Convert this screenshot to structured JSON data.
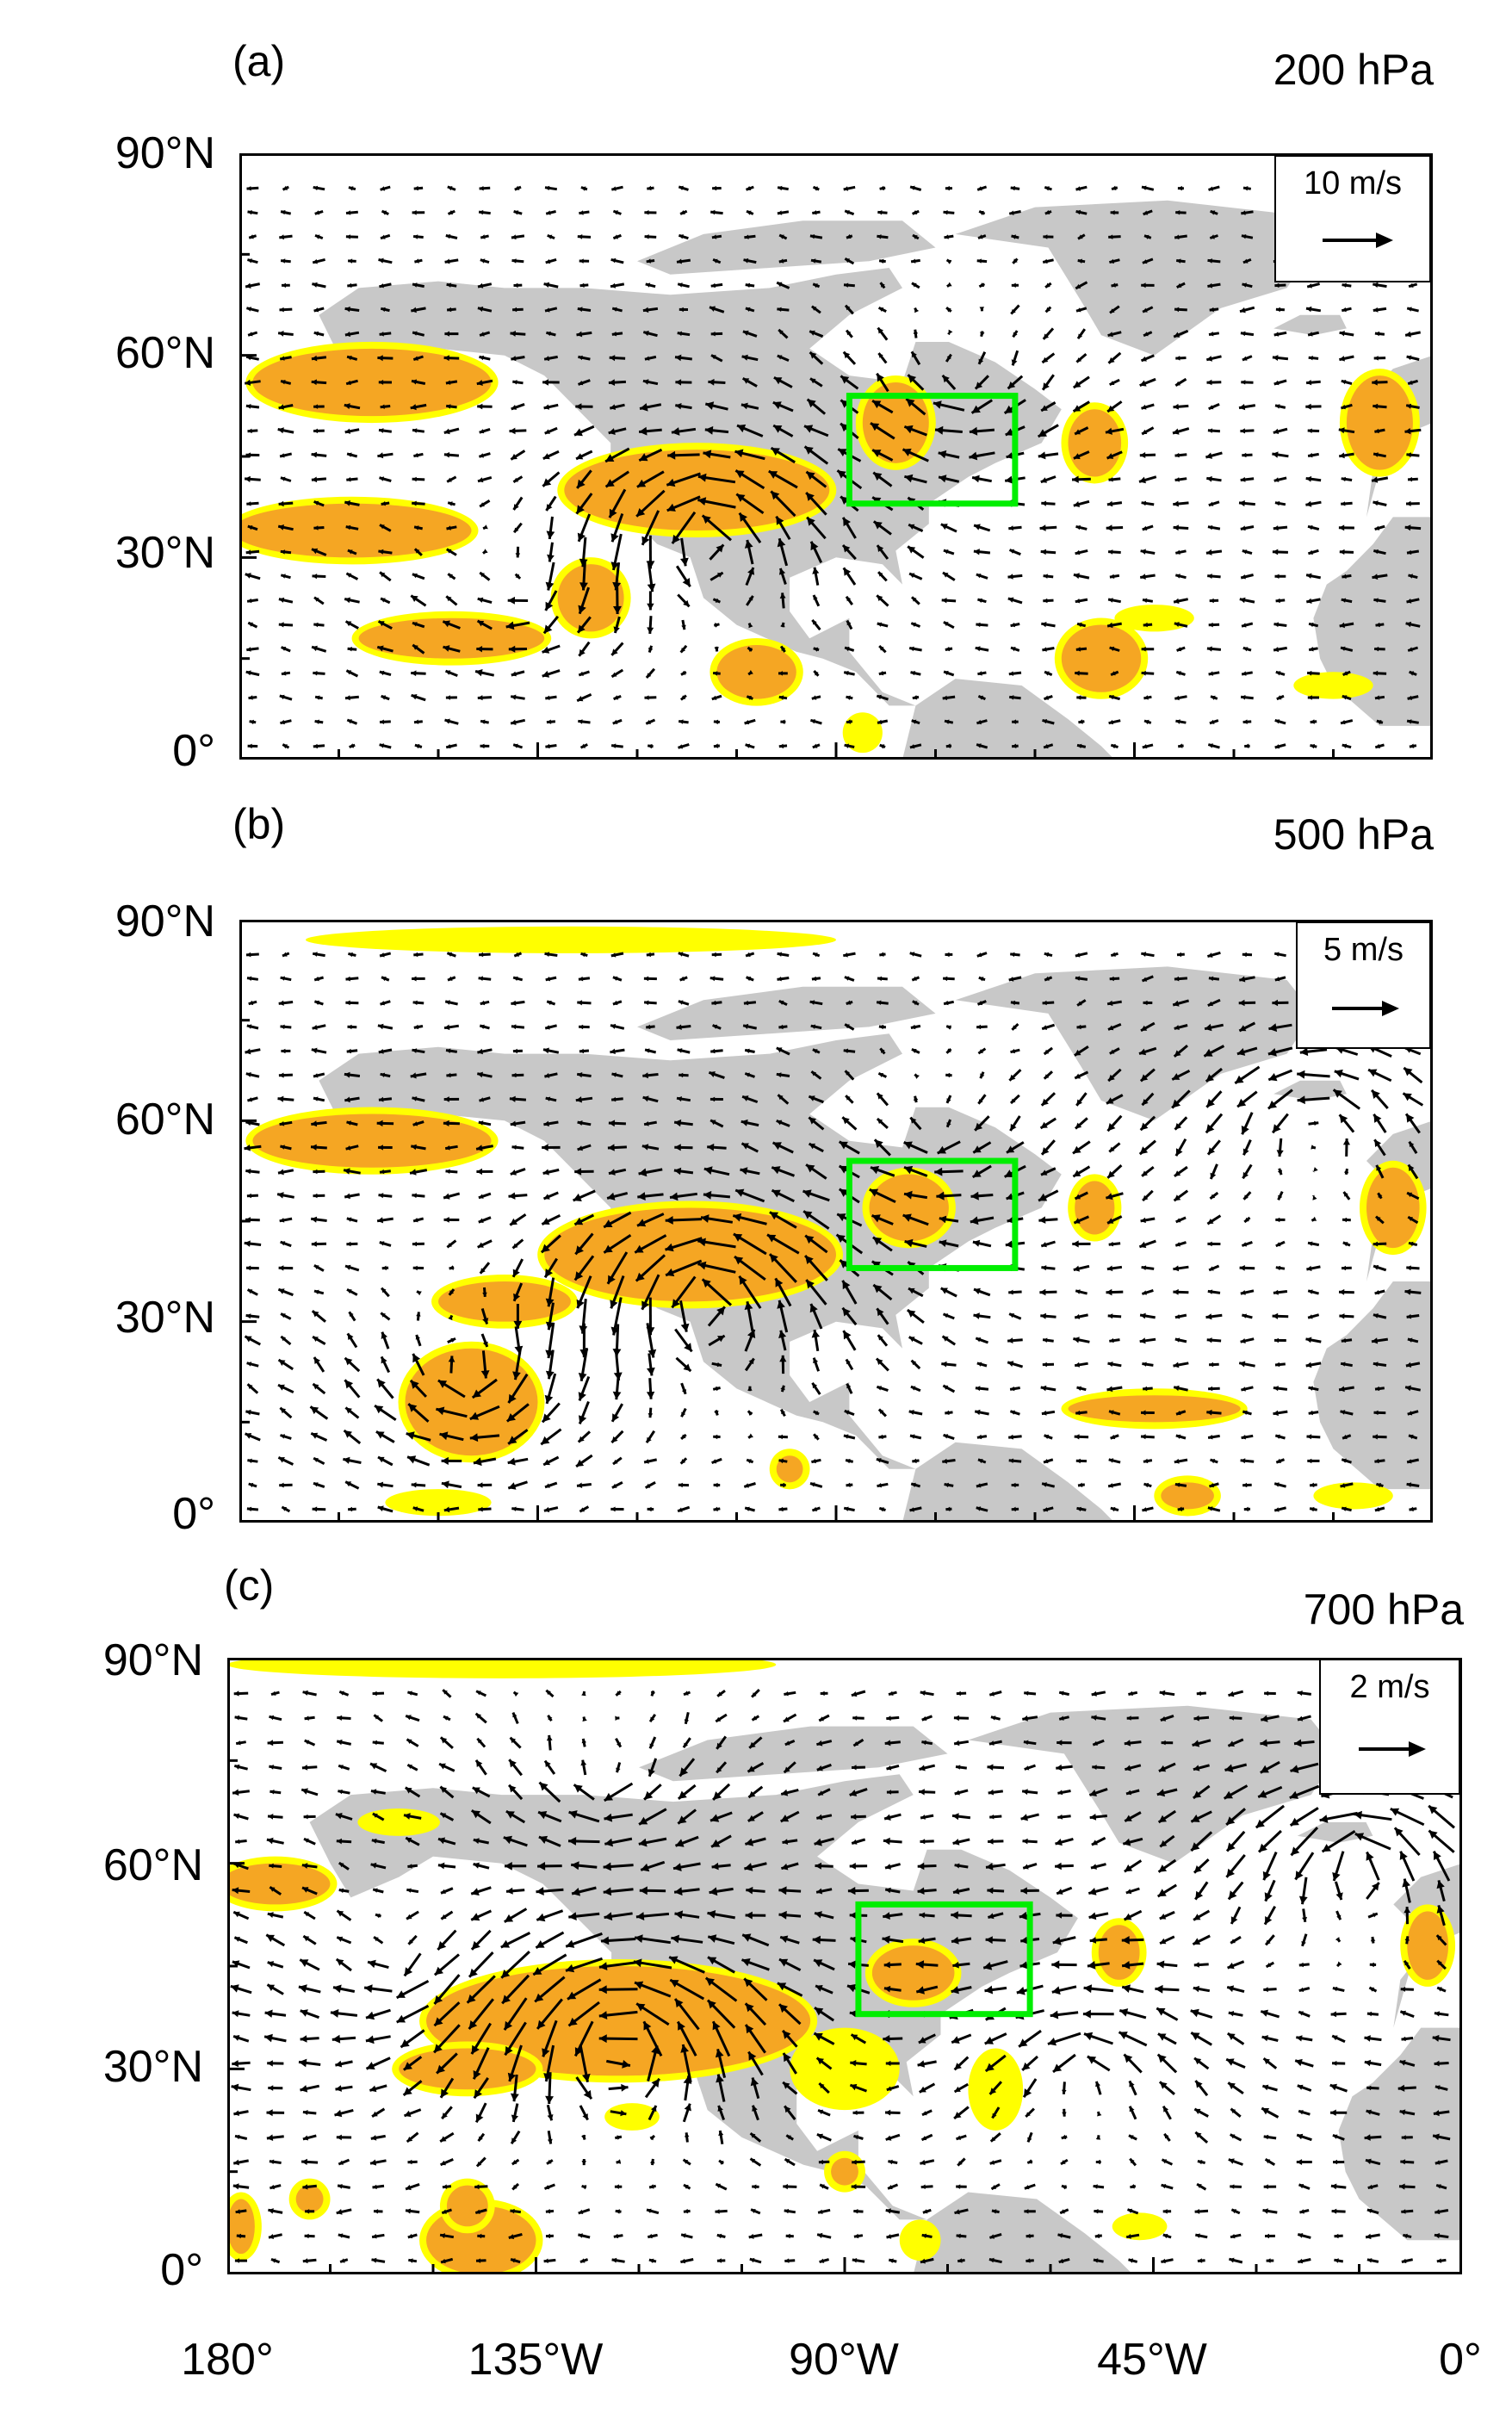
{
  "chart_data": [
    {
      "type": "vector-field",
      "panel_label": "(a)",
      "level_label": "200 hPa",
      "reference_vector": "10 m/s",
      "x_ticks": [
        "180°",
        "135°W",
        "90°W",
        "45°W",
        "0°"
      ],
      "x_tick_values": [
        -180,
        -135,
        -90,
        -45,
        0
      ],
      "y_ticks": [
        "90°N",
        "60°N",
        "30°N",
        "0°"
      ],
      "y_tick_values": [
        90,
        60,
        30,
        0
      ],
      "xlim": [
        -180,
        0
      ],
      "ylim": [
        0,
        90
      ],
      "land_color": "#c8c8c8",
      "significance_colors": {
        "p90": "#ffff00",
        "p95": "#f5a623"
      },
      "box_color": "#00ee00",
      "highlight_box": {
        "lon": [
          -88,
          -63
        ],
        "lat": [
          38,
          54
        ]
      },
      "significant_regions": [
        {
          "lon": -160,
          "lat": 56,
          "rx": 18,
          "ry": 5,
          "level": "p95"
        },
        {
          "lon": -163,
          "lat": 34,
          "rx": 18,
          "ry": 4,
          "level": "p95"
        },
        {
          "lon": -148,
          "lat": 18,
          "rx": 14,
          "ry": 3,
          "level": "p95"
        },
        {
          "lon": -127,
          "lat": 24,
          "rx": 5,
          "ry": 5,
          "level": "p95"
        },
        {
          "lon": -111,
          "lat": 40,
          "rx": 20,
          "ry": 6,
          "level": "p95"
        },
        {
          "lon": -102,
          "lat": 13,
          "rx": 6,
          "ry": 4,
          "level": "p95"
        },
        {
          "lon": -81,
          "lat": 50,
          "rx": 5,
          "ry": 6,
          "level": "p95"
        },
        {
          "lon": -51,
          "lat": 47,
          "rx": 4,
          "ry": 5,
          "level": "p95"
        },
        {
          "lon": -8,
          "lat": 50,
          "rx": 5,
          "ry": 7,
          "level": "p95"
        },
        {
          "lon": -50,
          "lat": 15,
          "rx": 6,
          "ry": 5,
          "level": "p95"
        },
        {
          "lon": -42,
          "lat": 21,
          "rx": 6,
          "ry": 2,
          "level": "p90"
        },
        {
          "lon": -86,
          "lat": 4,
          "rx": 3,
          "ry": 3,
          "level": "p90"
        },
        {
          "lon": -15,
          "lat": 11,
          "rx": 6,
          "ry": 2,
          "level": "p90"
        }
      ],
      "circulation_centers": [
        {
          "lon": -110,
          "lat": 33,
          "sense": "cyclonic",
          "strength": 1.2
        },
        {
          "lon": -137,
          "lat": 25,
          "sense": "anticyclonic",
          "strength": 0.5
        },
        {
          "lon": -72,
          "lat": 56,
          "sense": "anticyclonic",
          "strength": 0.6
        }
      ],
      "background_flow": {
        "u": -1.1,
        "v": 0
      }
    },
    {
      "type": "vector-field",
      "panel_label": "(b)",
      "level_label": "500 hPa",
      "reference_vector": "5 m/s",
      "x_ticks": [
        "180°",
        "135°W",
        "90°W",
        "45°W",
        "0°"
      ],
      "x_tick_values": [
        -180,
        -135,
        -90,
        -45,
        0
      ],
      "y_ticks": [
        "90°N",
        "60°N",
        "30°N",
        "0°"
      ],
      "y_tick_values": [
        90,
        60,
        30,
        0
      ],
      "xlim": [
        -180,
        0
      ],
      "ylim": [
        0,
        90
      ],
      "land_color": "#c8c8c8",
      "significance_colors": {
        "p90": "#ffff00",
        "p95": "#f5a623"
      },
      "box_color": "#00ee00",
      "highlight_box": {
        "lon": [
          -88,
          -63
        ],
        "lat": [
          38,
          54
        ]
      },
      "significant_regions": [
        {
          "lon": -160,
          "lat": 57,
          "rx": 18,
          "ry": 4,
          "level": "p95"
        },
        {
          "lon": -112,
          "lat": 40,
          "rx": 22,
          "ry": 7,
          "level": "p95"
        },
        {
          "lon": -140,
          "lat": 33,
          "rx": 10,
          "ry": 3,
          "level": "p95"
        },
        {
          "lon": -145,
          "lat": 18,
          "rx": 10,
          "ry": 8,
          "level": "p95"
        },
        {
          "lon": -79,
          "lat": 47,
          "rx": 6,
          "ry": 5,
          "level": "p95"
        },
        {
          "lon": -51,
          "lat": 47,
          "rx": 3,
          "ry": 4,
          "level": "p95"
        },
        {
          "lon": -6,
          "lat": 47,
          "rx": 4,
          "ry": 6,
          "level": "p95"
        },
        {
          "lon": -42,
          "lat": 17,
          "rx": 13,
          "ry": 2,
          "level": "p95"
        },
        {
          "lon": -37,
          "lat": 4,
          "rx": 4,
          "ry": 2,
          "level": "p95"
        },
        {
          "lon": -12,
          "lat": 4,
          "rx": 6,
          "ry": 2,
          "level": "p90"
        },
        {
          "lon": -97,
          "lat": 8,
          "rx": 2,
          "ry": 2,
          "level": "p95"
        },
        {
          "lon": -150,
          "lat": 3,
          "rx": 8,
          "ry": 2,
          "level": "p90"
        },
        {
          "lon": -130,
          "lat": 87,
          "rx": 40,
          "ry": 2,
          "level": "p90"
        }
      ],
      "circulation_centers": [
        {
          "lon": -110,
          "lat": 33,
          "sense": "cyclonic",
          "strength": 1.4
        },
        {
          "lon": -145,
          "lat": 22,
          "sense": "anticyclonic",
          "strength": 0.9
        },
        {
          "lon": -18,
          "lat": 60,
          "sense": "cyclonic",
          "strength": 0.8
        },
        {
          "lon": -75,
          "lat": 58,
          "sense": "anticyclonic",
          "strength": 0.5
        }
      ],
      "background_flow": {
        "u": -1.2,
        "v": 0
      }
    },
    {
      "type": "vector-field",
      "panel_label": "(c)",
      "level_label": "700 hPa",
      "reference_vector": "2 m/s",
      "x_ticks": [
        "180°",
        "135°W",
        "90°W",
        "45°W",
        "0°"
      ],
      "x_tick_values": [
        -180,
        -135,
        -90,
        -45,
        0
      ],
      "y_ticks": [
        "90°N",
        "60°N",
        "30°N",
        "0°"
      ],
      "y_tick_values": [
        90,
        60,
        30,
        0
      ],
      "xlim": [
        -180,
        0
      ],
      "ylim": [
        0,
        90
      ],
      "land_color": "#c8c8c8",
      "significance_colors": {
        "p90": "#ffff00",
        "p95": "#f5a623"
      },
      "box_color": "#00ee00",
      "highlight_box": {
        "lon": [
          -88,
          -63
        ],
        "lat": [
          38,
          54
        ]
      },
      "significant_regions": [
        {
          "lon": -173,
          "lat": 57,
          "rx": 8,
          "ry": 3,
          "level": "p95"
        },
        {
          "lon": -155,
          "lat": 66,
          "rx": 6,
          "ry": 2,
          "level": "p90"
        },
        {
          "lon": -123,
          "lat": 37,
          "rx": 28,
          "ry": 8,
          "level": "p95"
        },
        {
          "lon": -145,
          "lat": 30,
          "rx": 10,
          "ry": 3,
          "level": "p95"
        },
        {
          "lon": -90,
          "lat": 30,
          "rx": 8,
          "ry": 6,
          "level": "p90"
        },
        {
          "lon": -68,
          "lat": 27,
          "rx": 4,
          "ry": 6,
          "level": "p90"
        },
        {
          "lon": -80,
          "lat": 44,
          "rx": 6,
          "ry": 4,
          "level": "p95"
        },
        {
          "lon": -50,
          "lat": 47,
          "rx": 3,
          "ry": 4,
          "level": "p95"
        },
        {
          "lon": -5,
          "lat": 48,
          "rx": 3,
          "ry": 5,
          "level": "p95"
        },
        {
          "lon": -143,
          "lat": 5,
          "rx": 8,
          "ry": 5,
          "level": "p95"
        },
        {
          "lon": -145,
          "lat": 10,
          "rx": 3,
          "ry": 3,
          "level": "p95"
        },
        {
          "lon": -178,
          "lat": 7,
          "rx": 2,
          "ry": 4,
          "level": "p95"
        },
        {
          "lon": -168,
          "lat": 11,
          "rx": 2,
          "ry": 2,
          "level": "p95"
        },
        {
          "lon": -121,
          "lat": 23,
          "rx": 4,
          "ry": 2,
          "level": "p90"
        },
        {
          "lon": -79,
          "lat": 5,
          "rx": 3,
          "ry": 3,
          "level": "p90"
        },
        {
          "lon": -47,
          "lat": 7,
          "rx": 4,
          "ry": 2,
          "level": "p90"
        },
        {
          "lon": -90,
          "lat": 15,
          "rx": 2,
          "ry": 2,
          "level": "p95"
        },
        {
          "lon": -140,
          "lat": 89,
          "rx": 40,
          "ry": 2,
          "level": "p90"
        }
      ],
      "circulation_centers": [
        {
          "lon": -123,
          "lat": 34,
          "sense": "cyclonic",
          "strength": 1.7
        },
        {
          "lon": -55,
          "lat": 30,
          "sense": "cyclonic",
          "strength": 0.7
        },
        {
          "lon": -15,
          "lat": 60,
          "sense": "cyclonic",
          "strength": 1.2
        },
        {
          "lon": -125,
          "lat": 72,
          "sense": "anticyclonic",
          "strength": 0.7
        },
        {
          "lon": -155,
          "lat": 45,
          "sense": "anticyclonic",
          "strength": 0.5
        }
      ],
      "background_flow": {
        "u": -1.4,
        "v": 0
      }
    }
  ]
}
